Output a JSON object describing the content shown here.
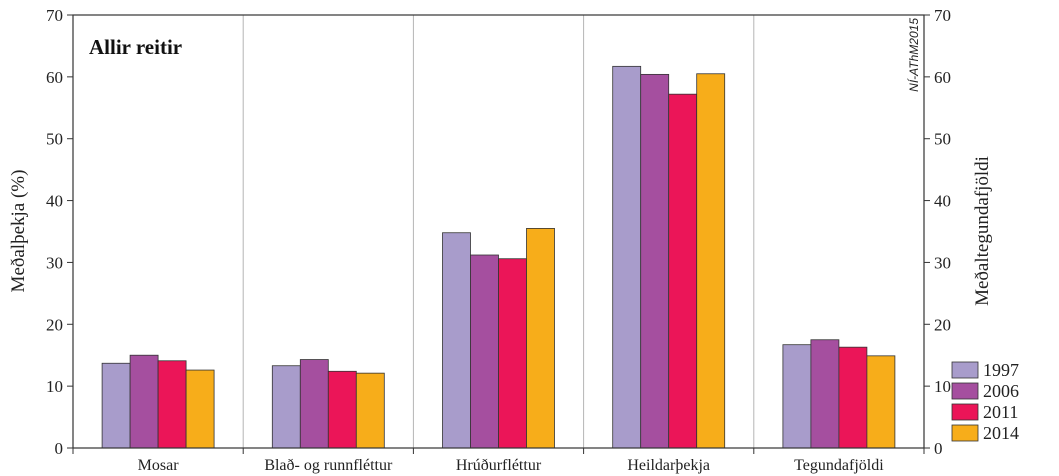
{
  "chart_data": {
    "type": "bar",
    "title": "Allir reitir",
    "watermark": "NÍ-AThM2015",
    "ylabel": "Meðalþekja (%)",
    "ylabel_right": "Meðaltegundafjöldi",
    "ylim": [
      0,
      70
    ],
    "yticks": [
      "0",
      "10",
      "20",
      "30",
      "40",
      "50",
      "60",
      "70"
    ],
    "grid": "vertical",
    "legend_position": "bottom-right",
    "categories": [
      "Mosar",
      "Blað- og runnfléttur",
      "Hrúðurfléttur",
      "Heildarþekja",
      "Tegundafjöldi"
    ],
    "series": [
      {
        "name": "1997",
        "color": "#a89ccb",
        "values": [
          13.7,
          13.3,
          34.8,
          61.7,
          16.7
        ]
      },
      {
        "name": "2006",
        "color": "#a54f9f",
        "values": [
          15.0,
          14.3,
          31.2,
          60.4,
          17.5
        ]
      },
      {
        "name": "2011",
        "color": "#eb1558",
        "values": [
          14.1,
          12.4,
          30.6,
          57.2,
          16.3
        ]
      },
      {
        "name": "2014",
        "color": "#f7ad1a",
        "values": [
          12.6,
          12.1,
          35.5,
          60.5,
          14.9
        ]
      }
    ]
  }
}
